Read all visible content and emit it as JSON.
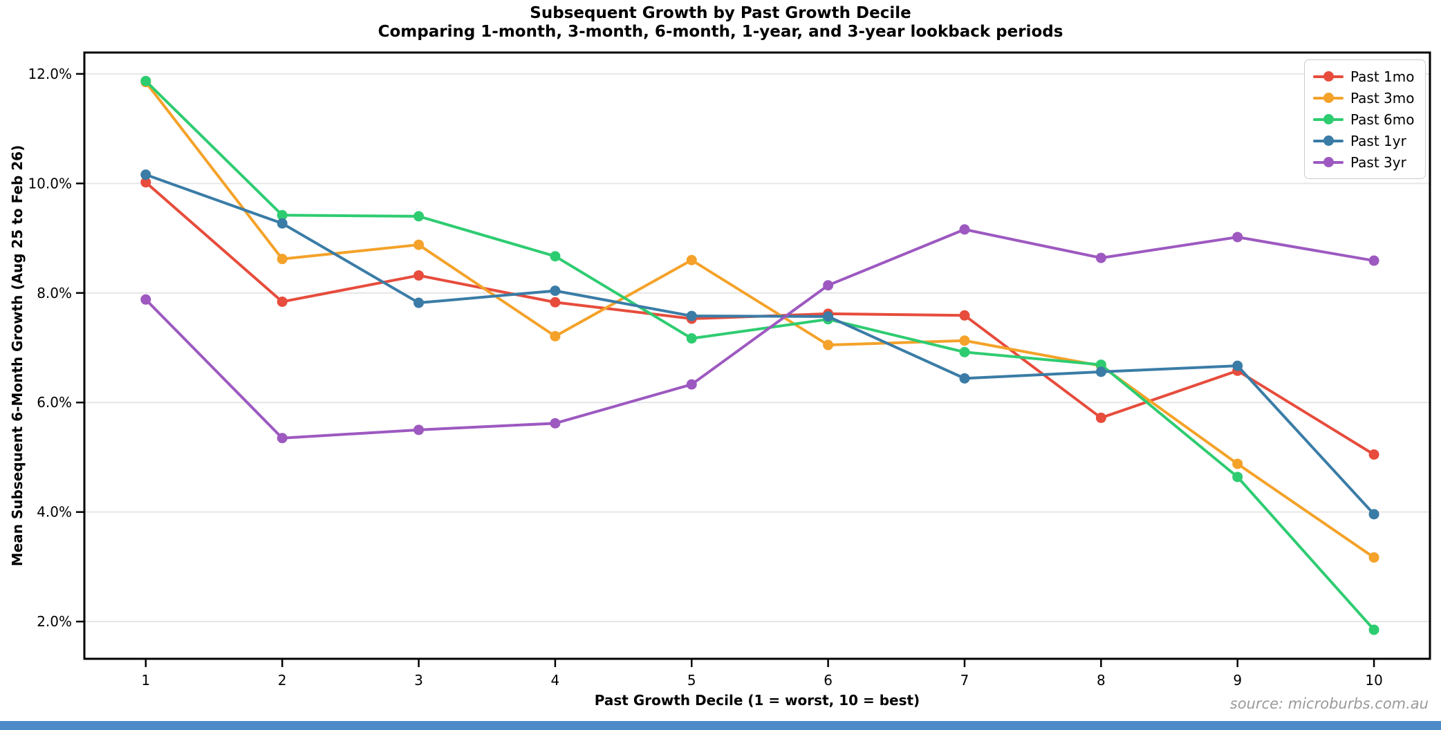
{
  "page": {
    "background_color": "#ffffff",
    "bottom_bar_color": "#4d8bc8"
  },
  "header": {
    "title": "Subsequent Growth by Past Growth Decile",
    "subtitle": "Comparing 1-month, 3-month, 6-month, 1-year, and 3-year lookback periods"
  },
  "footer": {
    "source": "source: microburbs.com.au"
  },
  "chart_data": {
    "type": "line",
    "title": "Subsequent Growth by Past Growth Decile",
    "subtitle": "Comparing 1-month, 3-month, 6-month, 1-year, and 3-year lookback periods",
    "xlabel": "Past Growth Decile (1 = worst, 10 = best)",
    "ylabel": "Mean Subsequent 6-Month Growth (Aug 25 to Feb 26)",
    "unit": "%",
    "x": [
      1,
      2,
      3,
      4,
      5,
      6,
      7,
      8,
      9,
      10
    ],
    "x_tick_labels": [
      "1",
      "2",
      "3",
      "4",
      "5",
      "6",
      "7",
      "8",
      "9",
      "10"
    ],
    "y_ticks": [
      2,
      4,
      6,
      8,
      10,
      12
    ],
    "y_tick_labels": [
      "2.0%",
      "4.0%",
      "6.0%",
      "8.0%",
      "10.0%",
      "12.0%"
    ],
    "xlim": [
      0.55,
      10.41
    ],
    "ylim": [
      1.32,
      12.39
    ],
    "grid": "horizontal",
    "grid_color": "#e6e6e6",
    "legend_position": "upper right",
    "series": [
      {
        "name": "Past 1mo",
        "color": "#e74c3c",
        "values": [
          10.02,
          7.84,
          8.32,
          7.83,
          7.53,
          7.62,
          7.59,
          5.72,
          6.58,
          5.05
        ]
      },
      {
        "name": "Past 3mo",
        "color": "#f4a229",
        "values": [
          11.85,
          8.62,
          8.88,
          7.21,
          8.6,
          7.05,
          7.13,
          6.67,
          4.88,
          3.17
        ]
      },
      {
        "name": "Past 6mo",
        "color": "#2ecc71",
        "values": [
          11.87,
          9.42,
          9.4,
          8.67,
          7.17,
          7.52,
          6.92,
          6.69,
          4.64,
          1.85
        ]
      },
      {
        "name": "Past 1yr",
        "color": "#3a7ca6",
        "values": [
          10.16,
          9.27,
          7.82,
          8.04,
          7.58,
          7.57,
          6.44,
          6.56,
          6.67,
          3.96
        ]
      },
      {
        "name": "Past 3yr",
        "color": "#9d59c0",
        "values": [
          7.88,
          5.35,
          5.5,
          5.62,
          6.33,
          8.14,
          9.16,
          8.64,
          9.02,
          8.59
        ]
      }
    ]
  }
}
